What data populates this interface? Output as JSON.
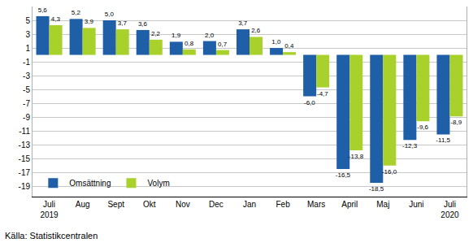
{
  "chart_data": {
    "type": "bar",
    "categories": [
      "Juli 2019",
      "Aug",
      "Sept",
      "Okt",
      "Nov",
      "Dec",
      "Jan",
      "Feb",
      "Mars",
      "April",
      "Maj",
      "Juni",
      "Juli 2020"
    ],
    "series": [
      {
        "name": "Omsättning",
        "color": "#1f5fa8",
        "values": [
          5.6,
          5.2,
          5.0,
          3.6,
          1.9,
          2.0,
          3.7,
          1.0,
          -6.0,
          -16.5,
          -18.5,
          -12.3,
          -11.5
        ],
        "value_labels": [
          "5,6",
          "5,2",
          "5,0",
          "3,6",
          "1,9",
          "2,0",
          "3,7",
          "1,0",
          "-6,0",
          "-16,5",
          "-18,5",
          "-12,3",
          "-11,5"
        ]
      },
      {
        "name": "Volym",
        "color": "#a9d12c",
        "values": [
          4.3,
          3.9,
          3.7,
          2.2,
          0.8,
          0.7,
          2.6,
          0.4,
          -4.7,
          -13.8,
          -16.0,
          -9.6,
          -8.9
        ],
        "value_labels": [
          "4,3",
          "3,9",
          "3,7",
          "2,2",
          "0,8",
          "0,7",
          "2,6",
          "0,4",
          "-4,7",
          "-13,8",
          "-16,0",
          "-9,6",
          "-8,9"
        ]
      }
    ],
    "ylim": [
      -20.5,
      7
    ],
    "yticks": [
      -19,
      -17,
      -15,
      -13,
      -11,
      -9,
      -7,
      -5,
      -3,
      -1,
      1,
      3,
      5
    ],
    "grid": true,
    "legend": "lower left",
    "data_labels": true,
    "source": "Källa: Statistikcentralen"
  }
}
